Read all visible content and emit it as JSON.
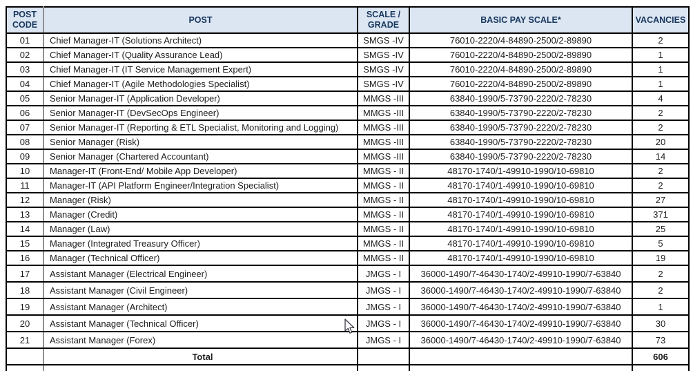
{
  "colors": {
    "header_bg": "#dce6f2",
    "header_text": "#17365d",
    "border": "#000000",
    "code_divider": "#909090",
    "body_text": "#1c1c1c"
  },
  "table": {
    "columns": [
      {
        "key": "code",
        "label": "POST CODE"
      },
      {
        "key": "post",
        "label": "POST"
      },
      {
        "key": "scale",
        "label": "SCALE / GRADE"
      },
      {
        "key": "pay",
        "label": "BASIC PAY SCALE*"
      },
      {
        "key": "vacancies",
        "label": "VACANCIES"
      }
    ],
    "rows": [
      {
        "code": "01",
        "post": "Chief Manager-IT (Solutions Architect)",
        "scale": "SMGS -IV",
        "pay": "76010-2220/4-84890-2500/2-89890",
        "vacancies": "2"
      },
      {
        "code": "02",
        "post": "Chief Manager-IT (Quality Assurance Lead)",
        "scale": "SMGS -IV",
        "pay": "76010-2220/4-84890-2500/2-89890",
        "vacancies": "1"
      },
      {
        "code": "03",
        "post": "Chief Manager-IT (IT Service Management Expert)",
        "scale": "SMGS -IV",
        "pay": "76010-2220/4-84890-2500/2-89890",
        "vacancies": "1"
      },
      {
        "code": "04",
        "post": "Chief Manager-IT (Agile Methodologies Specialist)",
        "scale": "SMGS -IV",
        "pay": "76010-2220/4-84890-2500/2-89890",
        "vacancies": "1"
      },
      {
        "code": "05",
        "post": "Senior Manager-IT (Application Developer)",
        "scale": "MMGS -III",
        "pay": "63840-1990/5-73790-2220/2-78230",
        "vacancies": "4"
      },
      {
        "code": "06",
        "post": "Senior Manager-IT (DevSecOps Engineer)",
        "scale": "MMGS -III",
        "pay": "63840-1990/5-73790-2220/2-78230",
        "vacancies": "2"
      },
      {
        "code": "07",
        "post": "Senior Manager-IT (Reporting & ETL Specialist, Monitoring and Logging)",
        "scale": "MMGS -III",
        "pay": "63840-1990/5-73790-2220/2-78230",
        "vacancies": "2"
      },
      {
        "code": "08",
        "post": "Senior Manager (Risk)",
        "scale": "MMGS -III",
        "pay": "63840-1990/5-73790-2220/2-78230",
        "vacancies": "20"
      },
      {
        "code": "09",
        "post": "Senior Manager (Chartered Accountant)",
        "scale": "MMGS -III",
        "pay": "63840-1990/5-73790-2220/2-78230",
        "vacancies": "14"
      },
      {
        "code": "10",
        "post": "Manager-IT (Front-End/ Mobile App Developer)",
        "scale": "MMGS - II",
        "pay": "48170-1740/1-49910-1990/10-69810",
        "vacancies": "2"
      },
      {
        "code": "11",
        "post": "Manager-IT (API Platform Engineer/Integration Specialist)",
        "scale": "MMGS - II",
        "pay": "48170-1740/1-49910-1990/10-69810",
        "vacancies": "2"
      },
      {
        "code": "12",
        "post": "Manager (Risk)",
        "scale": "MMGS - II",
        "pay": "48170-1740/1-49910-1990/10-69810",
        "vacancies": "27"
      },
      {
        "code": "13",
        "post": "Manager (Credit)",
        "scale": "MMGS - II",
        "pay": "48170-1740/1-49910-1990/10-69810",
        "vacancies": "371"
      },
      {
        "code": "14",
        "post": "Manager (Law)",
        "scale": "MMGS - II",
        "pay": "48170-1740/1-49910-1990/10-69810",
        "vacancies": "25"
      },
      {
        "code": "15",
        "post": "Manager (Integrated Treasury Officer)",
        "scale": "MMGS - II",
        "pay": "48170-1740/1-49910-1990/10-69810",
        "vacancies": "5"
      },
      {
        "code": "16",
        "post": "Manager (Technical Officer)",
        "scale": "MMGS - II",
        "pay": "48170-1740/1-49910-1990/10-69810",
        "vacancies": "19"
      },
      {
        "code": "17",
        "post": "Assistant Manager (Electrical Engineer)",
        "scale": "JMGS - I",
        "pay": "36000-1490/7-46430-1740/2-49910-1990/7-63840",
        "vacancies": "2"
      },
      {
        "code": "18",
        "post": "Assistant Manager (Civil Engineer)",
        "scale": "JMGS - I",
        "pay": "36000-1490/7-46430-1740/2-49910-1990/7-63840",
        "vacancies": "2"
      },
      {
        "code": "19",
        "post": "Assistant Manager (Architect)",
        "scale": "JMGS - I",
        "pay": "36000-1490/7-46430-1740/2-49910-1990/7-63840",
        "vacancies": "1"
      },
      {
        "code": "20",
        "post": "Assistant Manager (Technical Officer)",
        "scale": "JMGS - I",
        "pay": "36000-1490/7-46430-1740/2-49910-1990/7-63840",
        "vacancies": "30"
      },
      {
        "code": "21",
        "post": "Assistant Manager (Forex)",
        "scale": "JMGS - I",
        "pay": "36000-1490/7-46430-1740/2-49910-1990/7-63840",
        "vacancies": "73"
      }
    ],
    "total": {
      "label": "Total",
      "vacancies": "606"
    }
  }
}
